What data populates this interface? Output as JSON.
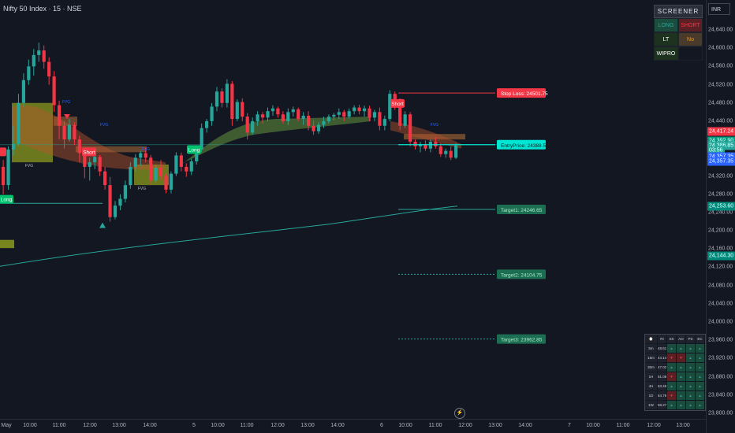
{
  "header": {
    "title": "Nifty 50 Index · 15 · NSE"
  },
  "currency_button": "INR",
  "colors": {
    "background": "#131722",
    "bull": "#26a69a",
    "bear": "#f23645",
    "ma": "#26a69a",
    "target": "#26a69a",
    "stop": "#f23645",
    "entry": "#00e5d4"
  },
  "price_axis": {
    "range": [
      23800,
      24680
    ],
    "ticks": [
      "24,640.00",
      "24,600.00",
      "24,560.00",
      "24,520.00",
      "24,480.00",
      "24,440.00",
      "24,400.00",
      "24,360.00",
      "24,320.00",
      "24,280.00",
      "24,240.00",
      "24,200.00",
      "24,160.00",
      "24,120.00",
      "24,080.00",
      "24,040.00",
      "24,000.00",
      "23,960.00",
      "23,920.00",
      "23,880.00",
      "23,840.00",
      "23,800.00"
    ],
    "badges": [
      {
        "label": "24,417.24",
        "price": 24417.24,
        "color": "#f23645"
      },
      {
        "label": "24,392.90",
        "price": 24396.5,
        "color": "#089981"
      },
      {
        "label": "24,386.85",
        "price": 24386.85,
        "color": "#26a69a"
      },
      {
        "label": "03:56",
        "price": 24375.5,
        "color": "#26a69a"
      },
      {
        "label": "24,357.35",
        "price": 24362.5,
        "color": "#2962ff"
      },
      {
        "label": "24,357.35",
        "price": 24352.5,
        "color": "#2962ff"
      },
      {
        "label": "24,253.60",
        "price": 24253.6,
        "color": "#00897b"
      },
      {
        "label": "24,144.30",
        "price": 24144.3,
        "color": "#00897b"
      }
    ]
  },
  "time_axis": {
    "ticks": [
      {
        "label": "May",
        "x": 8
      },
      {
        "label": "10:00",
        "x": 38
      },
      {
        "label": "11:00",
        "x": 75
      },
      {
        "label": "12:00",
        "x": 114
      },
      {
        "label": "13:00",
        "x": 151
      },
      {
        "label": "14:00",
        "x": 190
      },
      {
        "label": "5",
        "x": 246
      },
      {
        "label": "10:00",
        "x": 276
      },
      {
        "label": "11:00",
        "x": 313
      },
      {
        "label": "12:00",
        "x": 352
      },
      {
        "label": "13:00",
        "x": 390
      },
      {
        "label": "14:00",
        "x": 428
      },
      {
        "label": "6",
        "x": 484
      },
      {
        "label": "10:00",
        "x": 514
      },
      {
        "label": "11:00",
        "x": 552
      },
      {
        "label": "12:00",
        "x": 590
      },
      {
        "label": "13:00",
        "x": 628
      },
      {
        "label": "14:00",
        "x": 666
      },
      {
        "label": "7",
        "x": 722
      },
      {
        "label": "10:00",
        "x": 752
      },
      {
        "label": "11:00",
        "x": 790
      },
      {
        "label": "12:00",
        "x": 829
      },
      {
        "label": "13:00",
        "x": 866
      }
    ]
  },
  "levels": {
    "stop_loss": {
      "label": "Stop Loss: 24501.75",
      "price": 24501.75
    },
    "entry": {
      "label": "EntryPrice: 24388.55",
      "price": 24388.55
    },
    "target1": {
      "label": "Target1: 24246.65",
      "price": 24246.65
    },
    "target2": {
      "label": "Target2: 24104.75",
      "price": 24104.75
    },
    "target3": {
      "label": "Target3: 23962.85",
      "price": 23962.85
    }
  },
  "signals": [
    {
      "text": "Long",
      "type": "long"
    },
    {
      "text": "Short",
      "type": "short"
    },
    {
      "text": "Long",
      "type": "long"
    },
    {
      "text": "Short",
      "type": "short"
    }
  ],
  "zone_labels": [
    "FVG",
    "FVG",
    "FVG",
    "FVG",
    "FVG",
    "FVG"
  ],
  "chart_data": {
    "type": "candlestick",
    "title": "Nifty 50 Index · 15 · NSE",
    "ylim": [
      23800,
      24680
    ],
    "candles": [
      [
        24340,
        24355,
        24280,
        24300
      ],
      [
        24300,
        24385,
        24290,
        24378
      ],
      [
        24378,
        24430,
        24365,
        24390
      ],
      [
        24390,
        24500,
        24385,
        24480
      ],
      [
        24480,
        24545,
        24470,
        24530
      ],
      [
        24530,
        24575,
        24520,
        24560
      ],
      [
        24560,
        24598,
        24540,
        24585
      ],
      [
        24585,
        24612,
        24570,
        24595
      ],
      [
        24595,
        24606,
        24555,
        24570
      ],
      [
        24570,
        24580,
        24520,
        24538
      ],
      [
        24538,
        24550,
        24460,
        24475
      ],
      [
        24475,
        24485,
        24400,
        24430
      ],
      [
        24430,
        24440,
        24380,
        24400
      ],
      [
        24400,
        24445,
        24395,
        24432
      ],
      [
        24432,
        24438,
        24388,
        24400
      ],
      [
        24400,
        24408,
        24350,
        24370
      ],
      [
        24370,
        24378,
        24315,
        24340
      ],
      [
        24340,
        24360,
        24310,
        24350
      ],
      [
        24350,
        24370,
        24335,
        24362
      ],
      [
        24362,
        24366,
        24320,
        24330
      ],
      [
        24330,
        24340,
        24290,
        24300
      ],
      [
        24300,
        24318,
        24220,
        24230
      ],
      [
        24230,
        24265,
        24225,
        24255
      ],
      [
        24255,
        24280,
        24245,
        24270
      ],
      [
        24270,
        24310,
        24262,
        24300
      ],
      [
        24300,
        24350,
        24292,
        24340
      ],
      [
        24340,
        24368,
        24330,
        24360
      ],
      [
        24360,
        24375,
        24342,
        24370
      ],
      [
        24370,
        24382,
        24350,
        24360
      ],
      [
        24360,
        24366,
        24300,
        24310
      ],
      [
        24310,
        24345,
        24304,
        24338
      ],
      [
        24338,
        24355,
        24310,
        24320
      ],
      [
        24320,
        24325,
        24282,
        24290
      ],
      [
        24290,
        24330,
        24282,
        24325
      ],
      [
        24325,
        24372,
        24320,
        24365
      ],
      [
        24365,
        24371,
        24330,
        24340
      ],
      [
        24340,
        24348,
        24318,
        24330
      ],
      [
        24330,
        24358,
        24322,
        24352
      ],
      [
        24352,
        24385,
        24345,
        24378
      ],
      [
        24378,
        24435,
        24372,
        24425
      ],
      [
        24425,
        24445,
        24415,
        24440
      ],
      [
        24440,
        24480,
        24430,
        24472
      ],
      [
        24472,
        24515,
        24462,
        24505
      ],
      [
        24505,
        24512,
        24470,
        24480
      ],
      [
        24480,
        24532,
        24470,
        24522
      ],
      [
        24522,
        24528,
        24430,
        24445
      ],
      [
        24445,
        24488,
        24440,
        24482
      ],
      [
        24482,
        24490,
        24440,
        24450
      ],
      [
        24450,
        24458,
        24400,
        24415
      ],
      [
        24415,
        24448,
        24410,
        24440
      ],
      [
        24440,
        24462,
        24430,
        24455
      ],
      [
        24455,
        24460,
        24435,
        24448
      ],
      [
        24448,
        24470,
        24440,
        24462
      ],
      [
        24462,
        24475,
        24452,
        24468
      ],
      [
        24468,
        24472,
        24448,
        24455
      ],
      [
        24455,
        24462,
        24435,
        24440
      ],
      [
        24440,
        24468,
        24432,
        24460
      ],
      [
        24460,
        24472,
        24450,
        24466
      ],
      [
        24466,
        24470,
        24440,
        24445
      ],
      [
        24445,
        24460,
        24432,
        24452
      ],
      [
        24452,
        24462,
        24420,
        24430
      ],
      [
        24430,
        24442,
        24410,
        24418
      ],
      [
        24418,
        24438,
        24412,
        24432
      ],
      [
        24432,
        24450,
        24425,
        24440
      ],
      [
        24440,
        24455,
        24435,
        24450
      ],
      [
        24450,
        24458,
        24442,
        24454
      ],
      [
        24454,
        24468,
        24445,
        24460
      ],
      [
        24460,
        24465,
        24440,
        24450
      ],
      [
        24450,
        24468,
        24446,
        24462
      ],
      [
        24462,
        24475,
        24455,
        24470
      ],
      [
        24470,
        24476,
        24455,
        24462
      ],
      [
        24462,
        24474,
        24450,
        24468
      ],
      [
        24468,
        24474,
        24440,
        24448
      ],
      [
        24448,
        24465,
        24440,
        24460
      ],
      [
        24460,
        24470,
        24420,
        24430
      ],
      [
        24430,
        24452,
        24420,
        24445
      ],
      [
        24445,
        24508,
        24440,
        24500
      ],
      [
        24500,
        24505,
        24465,
        24475
      ],
      [
        24475,
        24490,
        24420,
        24430
      ],
      [
        24430,
        24462,
        24425,
        24455
      ],
      [
        24455,
        24460,
        24385,
        24395
      ],
      [
        24395,
        24400,
        24378,
        24385
      ],
      [
        24385,
        24395,
        24372,
        24390
      ],
      [
        24390,
        24398,
        24375,
        24380
      ],
      [
        24380,
        24400,
        24372,
        24395
      ],
      [
        24395,
        24405,
        24380,
        24385
      ],
      [
        24385,
        24392,
        24362,
        24368
      ],
      [
        24368,
        24380,
        24360,
        24375
      ],
      [
        24375,
        24385,
        24355,
        24360
      ],
      [
        24360,
        24392,
        24357,
        24386.85
      ]
    ]
  },
  "screener": {
    "title": "SCREENER",
    "rows": [
      {
        "left": "LONG",
        "right": "SHORT",
        "left_bg": "#1b4d3e",
        "right_bg": "#5c1f24",
        "left_fg": "#26a69a",
        "right_fg": "#f23645"
      },
      {
        "left": "LT",
        "right": "No Signal",
        "left_bg": "#1d3320",
        "right_bg": "#4a3a2a",
        "left_fg": "#ffffff",
        "right_fg": "#ff9800"
      },
      {
        "left": "WIPRO",
        "right": "",
        "left_bg": "#1d3320",
        "right_bg": "#131722",
        "left_fg": "#ffffff",
        "right_fg": "#ffffff"
      }
    ]
  },
  "mtf_table": {
    "headers": [
      "⌚",
      "RI",
      "SS",
      "AO",
      "PS",
      "EC"
    ],
    "rows": [
      {
        "tf": "5m",
        "val": "48.61",
        "cells": [
          "▲",
          "▲",
          "▲",
          "▲"
        ]
      },
      {
        "tf": "15m",
        "val": "44.14",
        "cells": [
          "▼",
          "▼",
          "▲",
          "▲"
        ]
      },
      {
        "tf": "30m",
        "val": "47.02",
        "cells": [
          "▲",
          "▲",
          "▲",
          "▲"
        ]
      },
      {
        "tf": "1H",
        "val": "51.08",
        "cells": [
          "▼",
          "▲",
          "▲",
          "▲"
        ]
      },
      {
        "tf": "4H",
        "val": "63.49",
        "cells": [
          "▲",
          "▲",
          "▲",
          "▲"
        ]
      },
      {
        "tf": "1D",
        "val": "64.78",
        "cells": [
          "▼",
          "▲",
          "▲",
          "▲"
        ]
      },
      {
        "tf": "1W",
        "val": "58.27",
        "cells": [
          "▲",
          "▲",
          "▲",
          "▲"
        ]
      }
    ]
  }
}
